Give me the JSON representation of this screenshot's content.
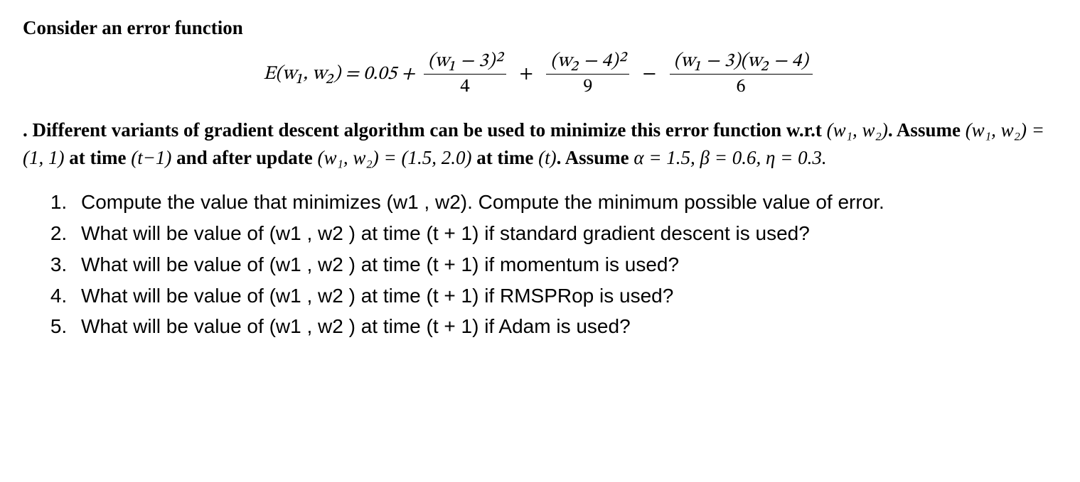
{
  "heading": "Consider an error function",
  "equation": {
    "lhs": "E(w₁, w₂) = 0.05 +",
    "term1_num": "(w₁ − 3)²",
    "term1_den": "4",
    "op1": "+",
    "term2_num": "(w₂ − 4)²",
    "term2_den": "9",
    "op2": "−",
    "term3_num": "(w₁ − 3)(w₂ − 4)",
    "term3_den": "6"
  },
  "body": {
    "prefix": ". Different variants of gradient descent algorithm can be used to minimize this error function w.r.t ",
    "m1": "(w₁, w₂)",
    "s1": ". Assume ",
    "m2": "(w₁, w₂) = (1, 1)",
    "s2": " at time ",
    "m3": "(t−1)",
    "s3": " and after update ",
    "m4": "(w₁, w₂) = (1.5, 2.0)",
    "s4": " at time ",
    "m5": "(t)",
    "s5": ". Assume ",
    "m6": "α = 1.5, β = 0.6, η = 0.3.",
    "suffix": ""
  },
  "questions": [
    "Compute the value that minimizes (w1 , w2). Compute the minimum possible value of error.",
    "What will be value of (w1 , w2 ) at time (t + 1) if standard gradient descent is used?",
    "What will be value of (w1 , w2 ) at time (t + 1) if momentum is used?",
    "What will be value of (w1 , w2 ) at time (t + 1) if RMSPRop is used?",
    "What will be value of (w1 , w2 ) at time (t + 1) if Adam is used?"
  ],
  "style": {
    "background": "#ffffff",
    "text_color": "#000000",
    "heading_fontsize": 27,
    "equation_fontsize": 27,
    "body_fontsize": 27,
    "question_fontsize": 28,
    "serif_family": "Georgia, Times New Roman, serif",
    "sans_family": "Arial, Helvetica, sans-serif"
  }
}
